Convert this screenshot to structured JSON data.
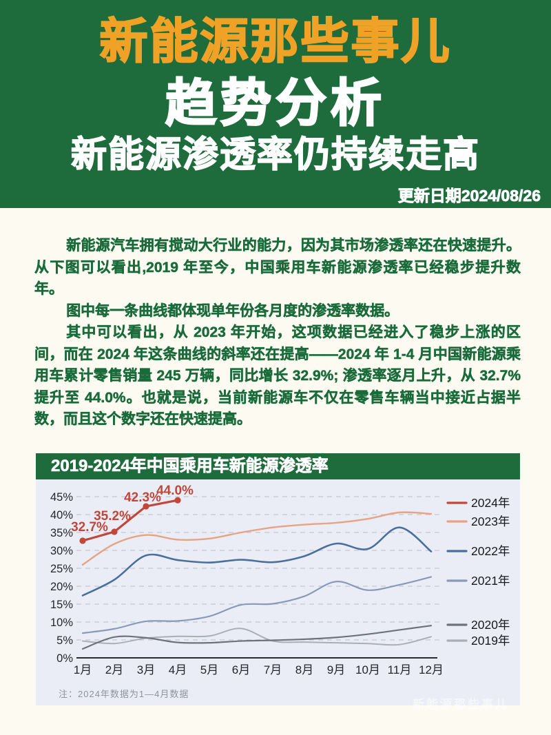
{
  "header": {
    "brand": "新能源那些事儿",
    "title": "趋势分析",
    "subtitle": "新能源渗透率仍持续走高",
    "update_date": "更新日期2024/08/26",
    "bg_color": "#1e6b3c",
    "brand_color": "#f0a227",
    "title_color": "#ffffff"
  },
  "article": {
    "text_color": "#1a6b3c",
    "paragraphs": [
      "新能源汽车拥有搅动大行业的能力，因为其市场渗透率还在快速提升。从下图可以看出,2019 年至今，中国乘用车新能源渗透率已经稳步提升数年。",
      "图中每一条曲线都体现单年份各月度的渗透率数据。",
      "其中可以看出，从 2023 年开始，这项数据已经进入了稳步上涨的区间，而在 2024 年这条曲线的斜率还在提高——2024 年 1-4 月中国新能源乘用车累计零售销量 245 万辆，同比增长 32.9%; 渗透率逐月上升，从 32.7%提升至 44.0%。也就是说，当前新能源车不仅在零售车辆当中接近占据半数，而且这个数字还在快速提高。"
    ]
  },
  "watermark": "新能源那些事儿",
  "chart_data": {
    "type": "line",
    "title": "2019-2024年中国乘用车新能源渗透率",
    "title_bg": "#1e6b3c",
    "panel_bg": "#eaedf5",
    "grid_color": "#c9cdd8",
    "axis_color": "#2b2b2b",
    "tick_color": "#24262b",
    "note": "注：2024年数据为1—4月数据",
    "grid": "horizontal-dashed",
    "legend_position": "right",
    "x_labels": [
      "1月",
      "2月",
      "3月",
      "4月",
      "5月",
      "6月",
      "7月",
      "8月",
      "9月",
      "10月",
      "11月",
      "12月"
    ],
    "y_ticks": [
      "0%",
      "5%",
      "10%",
      "15%",
      "20%",
      "25%",
      "30%",
      "35%",
      "40%",
      "45%"
    ],
    "ylim": [
      0,
      47
    ],
    "legend_y": [
      34,
      61,
      104,
      147,
      211,
      234
    ],
    "series": [
      {
        "name": "2024年",
        "color": "#c2463a",
        "width": 3.2,
        "smooth": false,
        "markers": true,
        "values": [
          32.7,
          35.2,
          42.3,
          44.0
        ],
        "point_labels": [
          "32.7%",
          "35.2%",
          "42.3%",
          "44.0%"
        ],
        "label_offsets": [
          [
            10,
            -14
          ],
          [
            -3,
            -17
          ],
          [
            -5,
            -7
          ],
          [
            -4,
            -8
          ]
        ]
      },
      {
        "name": "2023年",
        "color": "#e7a384",
        "width": 2.4,
        "smooth": true,
        "values": [
          26.0,
          31.8,
          34.3,
          33.0,
          33.3,
          35.0,
          36.4,
          37.2,
          37.7,
          38.8,
          40.6,
          40.2
        ]
      },
      {
        "name": "2022年",
        "color": "#4a6f9d",
        "width": 2.6,
        "smooth": true,
        "values": [
          17.4,
          21.8,
          28.6,
          27.3,
          26.6,
          27.4,
          26.7,
          28.4,
          31.9,
          30.4,
          36.4,
          29.7
        ]
      },
      {
        "name": "2021年",
        "color": "#8a99b8",
        "width": 2.2,
        "smooth": true,
        "values": [
          6.9,
          8.1,
          10.2,
          10.3,
          11.6,
          14.8,
          15.1,
          17.2,
          21.3,
          18.9,
          20.4,
          22.6
        ]
      },
      {
        "name": "2020年",
        "color": "#6e737b",
        "width": 2.2,
        "smooth": true,
        "values": [
          2.5,
          5.8,
          5.6,
          4.3,
          4.2,
          4.7,
          4.9,
          5.2,
          5.7,
          6.6,
          7.8,
          9.0
        ]
      },
      {
        "name": "2019年",
        "color": "#aaaeb5",
        "width": 2.0,
        "smooth": true,
        "values": [
          4.7,
          4.0,
          5.5,
          6.0,
          6.1,
          8.2,
          4.7,
          4.4,
          4.2,
          4.0,
          3.7,
          5.9
        ]
      }
    ]
  }
}
